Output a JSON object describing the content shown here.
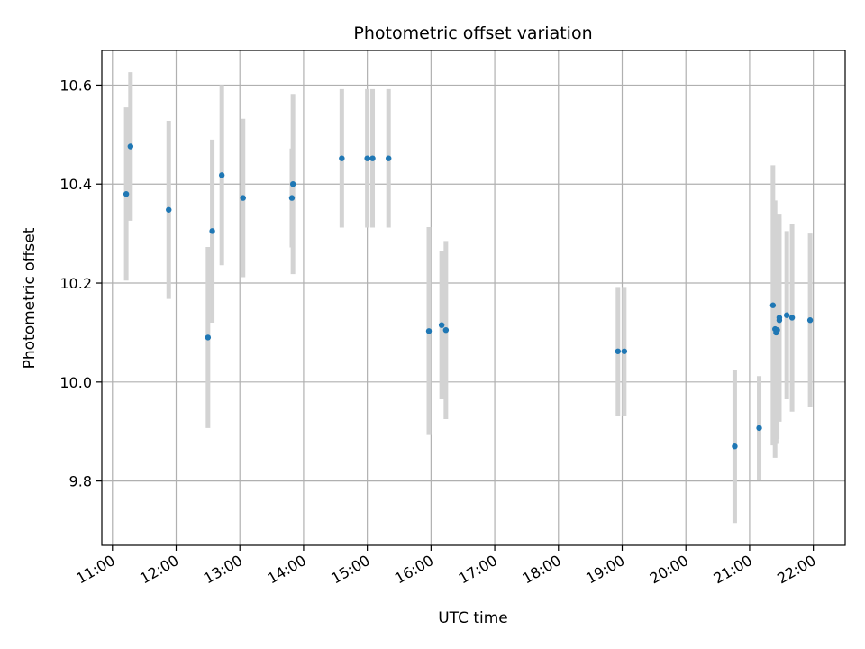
{
  "chart_data": {
    "type": "scatter",
    "title": "Photometric offset variation",
    "xlabel": "UTC time",
    "ylabel": "Photometric offset",
    "xlim": [
      "10:50",
      "22:30"
    ],
    "ylim": [
      9.67,
      10.67
    ],
    "grid": true,
    "x_ticks": [
      "11:00",
      "12:00",
      "13:00",
      "14:00",
      "15:00",
      "16:00",
      "17:00",
      "18:00",
      "19:00",
      "20:00",
      "21:00",
      "22:00"
    ],
    "y_ticks": [
      "9.8",
      "10.0",
      "10.2",
      "10.4",
      "10.6"
    ],
    "colors": {
      "points": "#1f77b4",
      "error_bars": "#d3d3d3",
      "grid": "#b0b0b0"
    },
    "points": [
      {
        "x": "11:13",
        "y": 10.38,
        "err": 0.175
      },
      {
        "x": "11:17",
        "y": 10.476,
        "err": 0.15
      },
      {
        "x": "11:53",
        "y": 10.348,
        "err": 0.18
      },
      {
        "x": "12:30",
        "y": 10.09,
        "err": 0.183
      },
      {
        "x": "12:34",
        "y": 10.305,
        "err": 0.185
      },
      {
        "x": "12:43",
        "y": 10.418,
        "err": 0.182
      },
      {
        "x": "13:03",
        "y": 10.372,
        "err": 0.16
      },
      {
        "x": "13:49",
        "y": 10.372,
        "err": 0.1
      },
      {
        "x": "13:50",
        "y": 10.4,
        "err": 0.182
      },
      {
        "x": "14:36",
        "y": 10.452,
        "err": 0.14
      },
      {
        "x": "15:00",
        "y": 10.452,
        "err": 0.14
      },
      {
        "x": "15:05",
        "y": 10.452,
        "err": 0.14
      },
      {
        "x": "15:20",
        "y": 10.452,
        "err": 0.14
      },
      {
        "x": "15:58",
        "y": 10.103,
        "err": 0.21
      },
      {
        "x": "16:10",
        "y": 10.115,
        "err": 0.15
      },
      {
        "x": "16:14",
        "y": 10.105,
        "err": 0.18
      },
      {
        "x": "18:56",
        "y": 10.062,
        "err": 0.13
      },
      {
        "x": "19:02",
        "y": 10.062,
        "err": 0.13
      },
      {
        "x": "20:46",
        "y": 9.87,
        "err": 0.155
      },
      {
        "x": "21:09",
        "y": 9.907,
        "err": 0.105
      },
      {
        "x": "21:22",
        "y": 10.155,
        "err": 0.283
      },
      {
        "x": "21:24",
        "y": 10.107,
        "err": 0.26
      },
      {
        "x": "21:25",
        "y": 10.1,
        "err": 0.225
      },
      {
        "x": "21:26",
        "y": 10.105,
        "err": 0.22
      },
      {
        "x": "21:28",
        "y": 10.125,
        "err": 0.205
      },
      {
        "x": "21:28",
        "y": 10.13,
        "err": 0.21
      },
      {
        "x": "21:35",
        "y": 10.135,
        "err": 0.17
      },
      {
        "x": "21:40",
        "y": 10.13,
        "err": 0.19
      },
      {
        "x": "21:57",
        "y": 10.125,
        "err": 0.175
      }
    ]
  }
}
